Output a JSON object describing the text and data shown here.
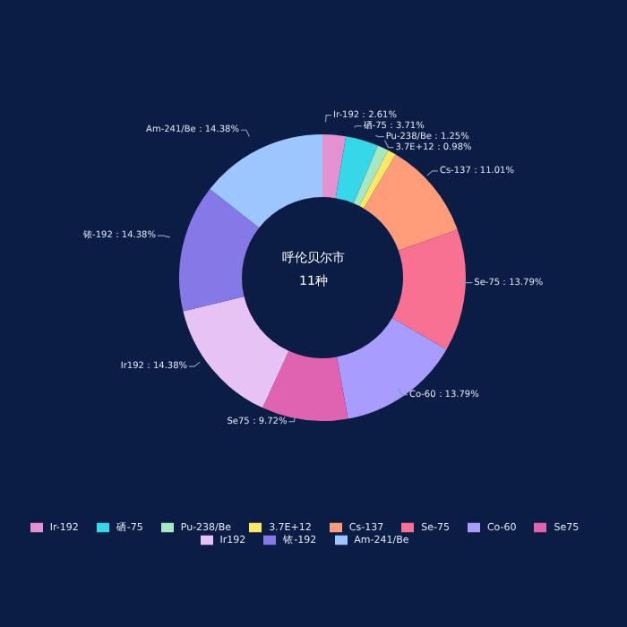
{
  "chart_data": {
    "type": "donut",
    "title": "呼伦贝尔市",
    "subtitle": "11种",
    "categories": [
      "Ir-192",
      "硒-75",
      "Pu-238/Be",
      "3.7E+12",
      "Cs-137",
      "Se-75",
      "Co-60",
      "Se75",
      "Ir192",
      "铱-192",
      "Am-241/Be"
    ],
    "values": [
      2.61,
      3.71,
      1.25,
      0.98,
      11.01,
      13.79,
      13.79,
      9.72,
      14.38,
      14.38,
      14.38
    ],
    "colors": [
      "#e391d0",
      "#36d7e8",
      "#a6e8c3",
      "#fde767",
      "#ff9d7a",
      "#f87193",
      "#a89cff",
      "#e063b0",
      "#e6c2f5",
      "#8479e6",
      "#9dc6ff"
    ],
    "value_labels": [
      "：2.61%",
      "：3.71%",
      "：1.25%",
      "：0.98%",
      "：11.01%",
      "：13.79%",
      "：13.79%",
      "：9.72%",
      "：14.38%",
      "：14.38%",
      "：14.38%"
    ],
    "legend": "bottom"
  }
}
